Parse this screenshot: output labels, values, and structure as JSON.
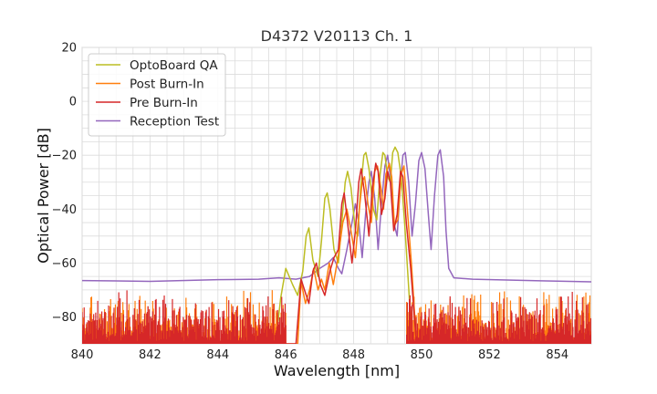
{
  "chart_data": {
    "type": "line",
    "title": "D4372 V20113 Ch. 1",
    "xlabel": "Wavelength [nm]",
    "ylabel": "Optical Power [dB]",
    "xlim": [
      840,
      855
    ],
    "ylim": [
      -90,
      20
    ],
    "xticks": [
      "840",
      "842",
      "844",
      "846",
      "848",
      "850",
      "852",
      "854"
    ],
    "yticks": [
      "20",
      "0",
      "−20",
      "−40",
      "−60",
      "−80"
    ],
    "grid": true,
    "legend_position": "top-left",
    "series": [
      {
        "name": "OptoBoard QA",
        "color": "#bcbd22",
        "noise_floor": false,
        "points": [
          [
            840,
            -90
          ],
          [
            845.7,
            -90
          ],
          [
            845.85,
            -73
          ],
          [
            846.0,
            -62
          ],
          [
            846.2,
            -68
          ],
          [
            846.35,
            -72
          ],
          [
            846.5,
            -63
          ],
          [
            846.6,
            -50
          ],
          [
            846.68,
            -47
          ],
          [
            846.8,
            -59
          ],
          [
            846.95,
            -65
          ],
          [
            847.05,
            -52
          ],
          [
            847.15,
            -36
          ],
          [
            847.22,
            -34
          ],
          [
            847.3,
            -40
          ],
          [
            847.42,
            -55
          ],
          [
            847.55,
            -60
          ],
          [
            847.65,
            -45
          ],
          [
            847.75,
            -30
          ],
          [
            847.82,
            -26
          ],
          [
            847.92,
            -32
          ],
          [
            848.05,
            -48
          ],
          [
            848.12,
            -50
          ],
          [
            848.2,
            -33
          ],
          [
            848.3,
            -20
          ],
          [
            848.36,
            -19
          ],
          [
            848.45,
            -25
          ],
          [
            848.58,
            -40
          ],
          [
            848.68,
            -44
          ],
          [
            848.78,
            -27
          ],
          [
            848.86,
            -19
          ],
          [
            848.92,
            -20
          ],
          [
            849.0,
            -28
          ],
          [
            849.08,
            -30
          ],
          [
            849.15,
            -19
          ],
          [
            849.22,
            -17
          ],
          [
            849.3,
            -19
          ],
          [
            849.4,
            -28
          ],
          [
            849.5,
            -45
          ],
          [
            849.6,
            -65
          ],
          [
            849.72,
            -90
          ],
          [
            855,
            -90
          ]
        ]
      },
      {
        "name": "Post Burn-In",
        "color": "#ff7f0e",
        "noise_floor": true,
        "noise_gaps": [
          [
            846.0,
            849.55
          ]
        ],
        "points": [
          [
            840,
            -90
          ],
          [
            846.35,
            -90
          ],
          [
            846.45,
            -67
          ],
          [
            846.58,
            -75
          ],
          [
            846.7,
            -70
          ],
          [
            846.82,
            -62
          ],
          [
            846.95,
            -70
          ],
          [
            847.05,
            -66
          ],
          [
            847.15,
            -70
          ],
          [
            847.28,
            -60
          ],
          [
            847.4,
            -68
          ],
          [
            847.55,
            -57
          ],
          [
            847.68,
            -45
          ],
          [
            847.8,
            -40
          ],
          [
            847.92,
            -48
          ],
          [
            848.05,
            -58
          ],
          [
            848.15,
            -42
          ],
          [
            848.25,
            -30
          ],
          [
            848.32,
            -28
          ],
          [
            848.42,
            -38
          ],
          [
            848.52,
            -45
          ],
          [
            848.62,
            -26
          ],
          [
            848.7,
            -24
          ],
          [
            848.8,
            -32
          ],
          [
            848.88,
            -40
          ],
          [
            848.95,
            -27
          ],
          [
            849.05,
            -23
          ],
          [
            849.12,
            -28
          ],
          [
            849.2,
            -46
          ],
          [
            849.3,
            -44
          ],
          [
            849.4,
            -27
          ],
          [
            849.48,
            -24
          ],
          [
            849.58,
            -40
          ],
          [
            849.7,
            -60
          ],
          [
            849.85,
            -90
          ],
          [
            855,
            -90
          ]
        ]
      },
      {
        "name": "Pre Burn-In",
        "color": "#d62728",
        "noise_floor": true,
        "noise_gaps": [
          [
            846.0,
            849.55
          ]
        ],
        "points": [
          [
            840,
            -90
          ],
          [
            846.3,
            -90
          ],
          [
            846.45,
            -66
          ],
          [
            846.55,
            -70
          ],
          [
            846.68,
            -75
          ],
          [
            846.8,
            -63
          ],
          [
            846.9,
            -60
          ],
          [
            847.02,
            -68
          ],
          [
            847.15,
            -72
          ],
          [
            847.3,
            -63
          ],
          [
            847.42,
            -58
          ],
          [
            847.55,
            -55
          ],
          [
            847.65,
            -38
          ],
          [
            847.72,
            -34
          ],
          [
            847.82,
            -45
          ],
          [
            847.95,
            -60
          ],
          [
            848.05,
            -48
          ],
          [
            848.15,
            -30
          ],
          [
            848.22,
            -25
          ],
          [
            848.32,
            -34
          ],
          [
            848.45,
            -50
          ],
          [
            848.55,
            -32
          ],
          [
            848.65,
            -23
          ],
          [
            848.72,
            -26
          ],
          [
            848.82,
            -42
          ],
          [
            848.92,
            -36
          ],
          [
            849.0,
            -26
          ],
          [
            849.08,
            -30
          ],
          [
            849.18,
            -48
          ],
          [
            849.28,
            -42
          ],
          [
            849.38,
            -26
          ],
          [
            849.45,
            -28
          ],
          [
            849.55,
            -45
          ],
          [
            849.68,
            -62
          ],
          [
            849.85,
            -90
          ],
          [
            855,
            -90
          ]
        ]
      },
      {
        "name": "Reception Test",
        "color": "#9467bd",
        "noise_floor": false,
        "points": [
          [
            840,
            -66.5
          ],
          [
            842,
            -66.8
          ],
          [
            844,
            -66.2
          ],
          [
            845.2,
            -66
          ],
          [
            845.8,
            -65.5
          ],
          [
            846.3,
            -66
          ],
          [
            846.7,
            -65
          ],
          [
            847.0,
            -62
          ],
          [
            847.25,
            -60
          ],
          [
            847.4,
            -58
          ],
          [
            847.55,
            -62
          ],
          [
            847.65,
            -64
          ],
          [
            847.8,
            -55
          ],
          [
            847.95,
            -45
          ],
          [
            848.05,
            -38
          ],
          [
            848.15,
            -45
          ],
          [
            848.25,
            -58
          ],
          [
            848.35,
            -42
          ],
          [
            848.45,
            -30
          ],
          [
            848.52,
            -26
          ],
          [
            848.62,
            -36
          ],
          [
            848.72,
            -55
          ],
          [
            848.82,
            -38
          ],
          [
            848.92,
            -24
          ],
          [
            849.0,
            -20
          ],
          [
            849.08,
            -28
          ],
          [
            849.18,
            -45
          ],
          [
            849.28,
            -50
          ],
          [
            849.38,
            -30
          ],
          [
            849.45,
            -20
          ],
          [
            849.52,
            -19
          ],
          [
            849.62,
            -30
          ],
          [
            849.72,
            -50
          ],
          [
            849.82,
            -38
          ],
          [
            849.92,
            -22
          ],
          [
            850.0,
            -19
          ],
          [
            850.1,
            -25
          ],
          [
            850.2,
            -42
          ],
          [
            850.28,
            -55
          ],
          [
            850.38,
            -35
          ],
          [
            850.48,
            -20
          ],
          [
            850.55,
            -18
          ],
          [
            850.65,
            -28
          ],
          [
            850.72,
            -48
          ],
          [
            850.8,
            -62
          ],
          [
            850.95,
            -65.5
          ],
          [
            851.5,
            -66
          ],
          [
            852.5,
            -66.3
          ],
          [
            853.5,
            -66.6
          ],
          [
            855,
            -67
          ]
        ]
      }
    ]
  }
}
